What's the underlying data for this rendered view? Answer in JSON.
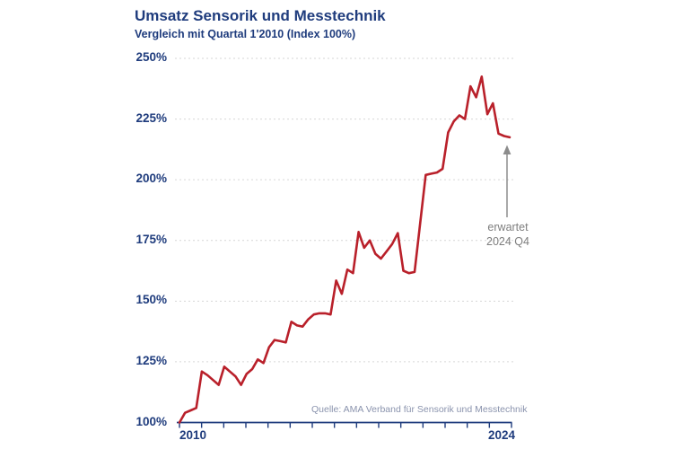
{
  "header": {
    "title": "Umsatz Sensorik und Messtechnik",
    "subtitle": "Vergleich mit Quartal 1'2010 (Index 100%)"
  },
  "source": "Quelle: AMA Verband für Sensorik und Messtechnik",
  "annotation": {
    "line1": "erwartet",
    "line2": "2024 Q4"
  },
  "colors": {
    "navy": "#1f3c7d",
    "red": "#b9202a",
    "grid": "#d6d6d6",
    "source_text": "#8a93ad",
    "annotation_text": "#7e7e7e",
    "arrow": "#8c8c8c"
  },
  "chart_data": {
    "type": "line",
    "title": "Umsatz Sensorik und Messtechnik",
    "subtitle": "Vergleich mit Quartal 1'2010 (Index 100%)",
    "frequency": "quarterly",
    "start": "2010 Q1",
    "end": "2024 Q4",
    "ylim": [
      100,
      250
    ],
    "yticks": [
      100,
      125,
      150,
      175,
      200,
      225,
      250
    ],
    "ytick_labels": [
      "100%",
      "125%",
      "150%",
      "175%",
      "200%",
      "225%",
      "250%"
    ],
    "xtick_labels": [
      "2010",
      "2024"
    ],
    "grid": "horizontal dashed, legend none",
    "last_point_note": "erwartet 2024 Q4",
    "series": [
      {
        "name": "Umsatz Index (Q1 2010 = 100%)",
        "color": "#b9202a",
        "values": [
          100,
          104,
          105,
          106,
          121,
          119.5,
          117.5,
          115.5,
          123,
          121,
          119,
          115.5,
          120,
          122,
          126,
          124.5,
          131,
          134,
          133.5,
          133,
          141.5,
          140,
          139.5,
          142.5,
          144.5,
          145,
          145,
          144.5,
          158.5,
          153,
          163,
          161.5,
          178.5,
          172,
          175,
          169.5,
          167.5,
          170.5,
          173.5,
          178,
          162.5,
          161.5,
          162,
          182,
          202,
          202.5,
          203,
          204.5,
          219.5,
          224,
          226.5,
          225,
          238.5,
          234,
          242.5,
          227,
          231.5,
          219,
          218,
          217.5
        ]
      }
    ]
  }
}
